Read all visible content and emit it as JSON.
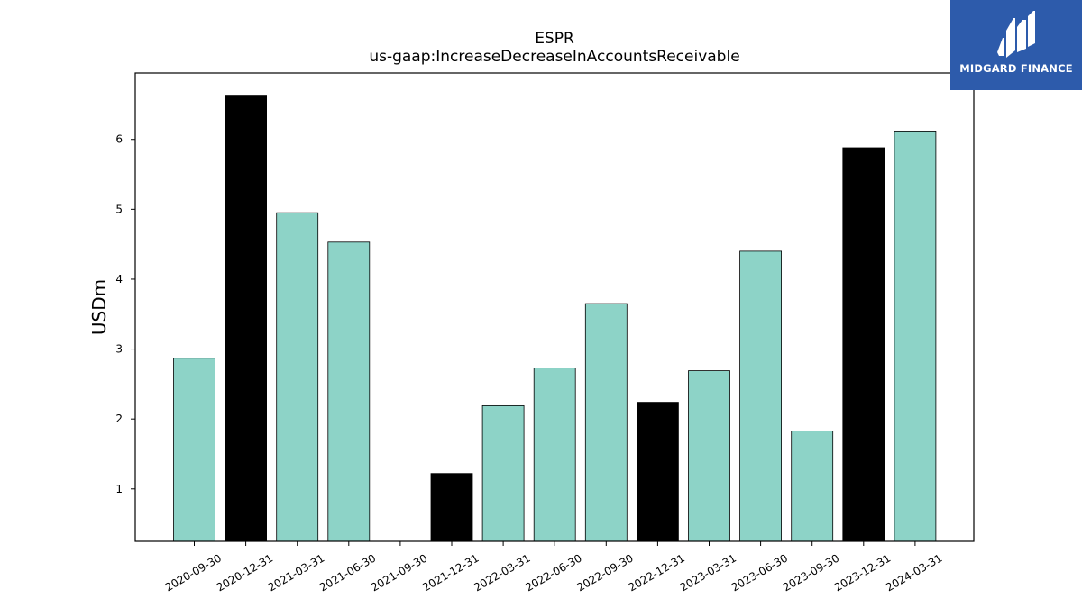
{
  "chart_data": {
    "type": "bar",
    "title": "ESPR",
    "subtitle": "us-gaap:IncreaseDecreaseInAccountsReceivable",
    "xlabel": "",
    "ylabel": "USDm",
    "ylim": [
      0.25,
      6.95
    ],
    "yticks": [
      1,
      2,
      3,
      4,
      5,
      6
    ],
    "grid": false,
    "categories": [
      "2020-09-30",
      "2020-12-31",
      "2021-03-31",
      "2021-06-30",
      "2021-09-30",
      "2021-12-31",
      "2022-03-31",
      "2022-06-30",
      "2022-09-30",
      "2022-12-31",
      "2023-03-31",
      "2023-06-30",
      "2023-09-30",
      "2023-12-31",
      "2024-03-31"
    ],
    "values": [
      2.87,
      6.62,
      4.95,
      4.53,
      null,
      1.22,
      2.19,
      2.73,
      3.65,
      2.24,
      2.69,
      4.4,
      1.83,
      5.88,
      6.12
    ],
    "colors": {
      "default": "#8dd3c7",
      "highlight": "#000000"
    },
    "highlight_categories": [
      "2020-12-31",
      "2021-12-31",
      "2022-12-31",
      "2023-12-31"
    ]
  },
  "logo": {
    "text": "MIDGARD FINANCE",
    "background": "#2d5bab"
  }
}
